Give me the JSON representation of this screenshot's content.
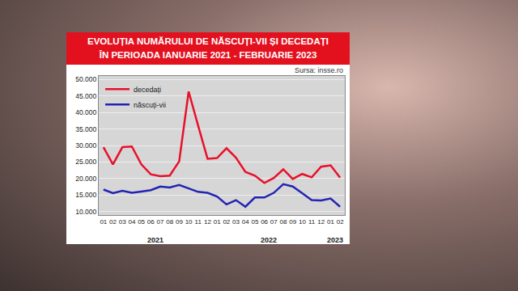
{
  "chart_data": {
    "type": "line",
    "title": "EVOLUȚIA NUMĂRULUI DE NĂSCUȚI-VII ȘI DECEDAȚI\nÎN PERIOADA IANUARIE 2021 - FEBRUARIE 2023",
    "annotations": [
      "Sursa: insse.ro"
    ],
    "categories": [
      "01",
      "02",
      "03",
      "04",
      "05",
      "06",
      "07",
      "08",
      "09",
      "10",
      "11",
      "12",
      "01",
      "02",
      "03",
      "04",
      "05",
      "06",
      "07",
      "08",
      "09",
      "10",
      "11",
      "12",
      "01",
      "02"
    ],
    "x_groups": [
      {
        "label": "2021",
        "start": 0,
        "end": 11
      },
      {
        "label": "2022",
        "start": 12,
        "end": 23
      },
      {
        "label": "2023",
        "start": 24,
        "end": 25
      }
    ],
    "series": [
      {
        "name": "decedați",
        "color": "#e8102a",
        "values": [
          29500,
          24300,
          29500,
          29700,
          24300,
          21300,
          20700,
          20900,
          25200,
          46300,
          36000,
          26000,
          26200,
          29200,
          26300,
          22000,
          20900,
          18700,
          20200,
          22800,
          19900,
          21400,
          20400,
          23600,
          24000,
          20300
        ]
      },
      {
        "name": "născuți-vii",
        "color": "#2323b4",
        "values": [
          16700,
          15600,
          16300,
          15700,
          16100,
          16500,
          17600,
          17300,
          18100,
          17100,
          16000,
          15700,
          14600,
          12200,
          13500,
          11500,
          14300,
          14300,
          15700,
          18300,
          17600,
          15600,
          13500,
          13400,
          14000,
          11500
        ]
      }
    ],
    "ylim": [
      9000,
      51000
    ],
    "yticks": [
      {
        "value": 10000,
        "label": "10.000"
      },
      {
        "value": 15000,
        "label": "15.000"
      },
      {
        "value": 20000,
        "label": "20.000"
      },
      {
        "value": 25000,
        "label": "25.000"
      },
      {
        "value": 30000,
        "label": "30.000"
      },
      {
        "value": 35000,
        "label": "35.000"
      },
      {
        "value": 40000,
        "label": "40.000"
      },
      {
        "value": 45000,
        "label": "45.000"
      },
      {
        "value": 50000,
        "label": "50.000"
      }
    ],
    "grid": true,
    "legend": "upper left"
  }
}
